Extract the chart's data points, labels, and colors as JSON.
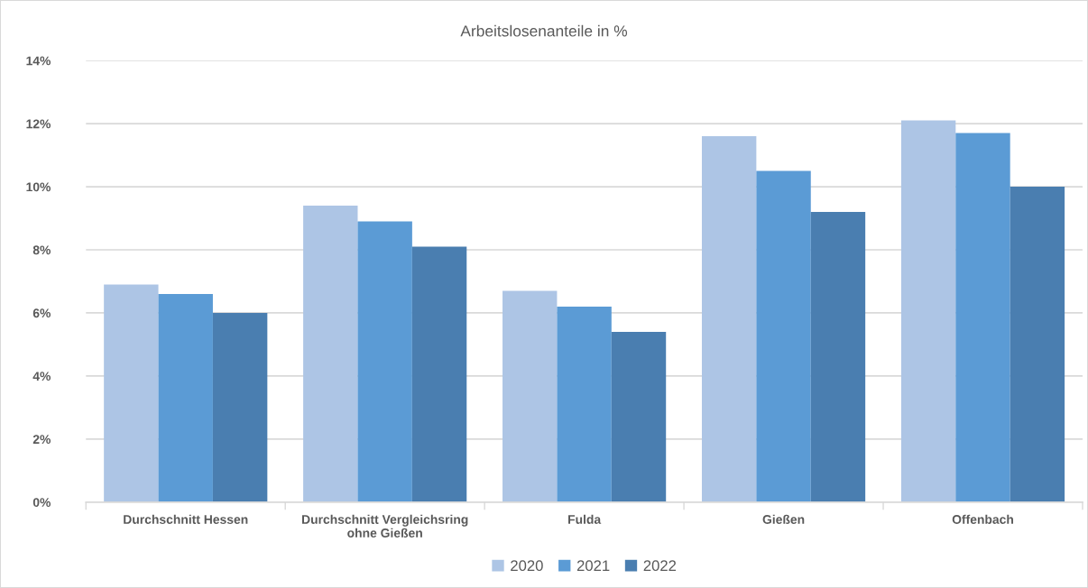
{
  "chart_data": {
    "type": "bar",
    "title": "Arbeitslosenanteile in %",
    "categories": [
      "Durchschnitt Hessen",
      "Durchschnitt Vergleichsring\nohne Gießen",
      "Fulda",
      "Gießen",
      "Offenbach"
    ],
    "series": [
      {
        "name": "2020",
        "color": "#adc5e5",
        "values": [
          6.9,
          9.4,
          6.7,
          11.6,
          12.1
        ]
      },
      {
        "name": "2021",
        "color": "#5b9bd5",
        "values": [
          6.6,
          8.9,
          6.2,
          10.5,
          11.7
        ]
      },
      {
        "name": "2022",
        "color": "#4a7eb0",
        "values": [
          6.0,
          8.1,
          5.4,
          9.2,
          10.0
        ]
      }
    ],
    "ylim": [
      0,
      14
    ],
    "yticks": [
      {
        "value": 0,
        "label": "0%"
      },
      {
        "value": 2,
        "label": "2%"
      },
      {
        "value": 4,
        "label": "4%"
      },
      {
        "value": 6,
        "label": "6%"
      },
      {
        "value": 8,
        "label": "8%"
      },
      {
        "value": 10,
        "label": "10%"
      },
      {
        "value": 12,
        "label": "12%"
      },
      {
        "value": 14,
        "label": "14%"
      }
    ],
    "grid": "y",
    "legend": "bottom"
  }
}
